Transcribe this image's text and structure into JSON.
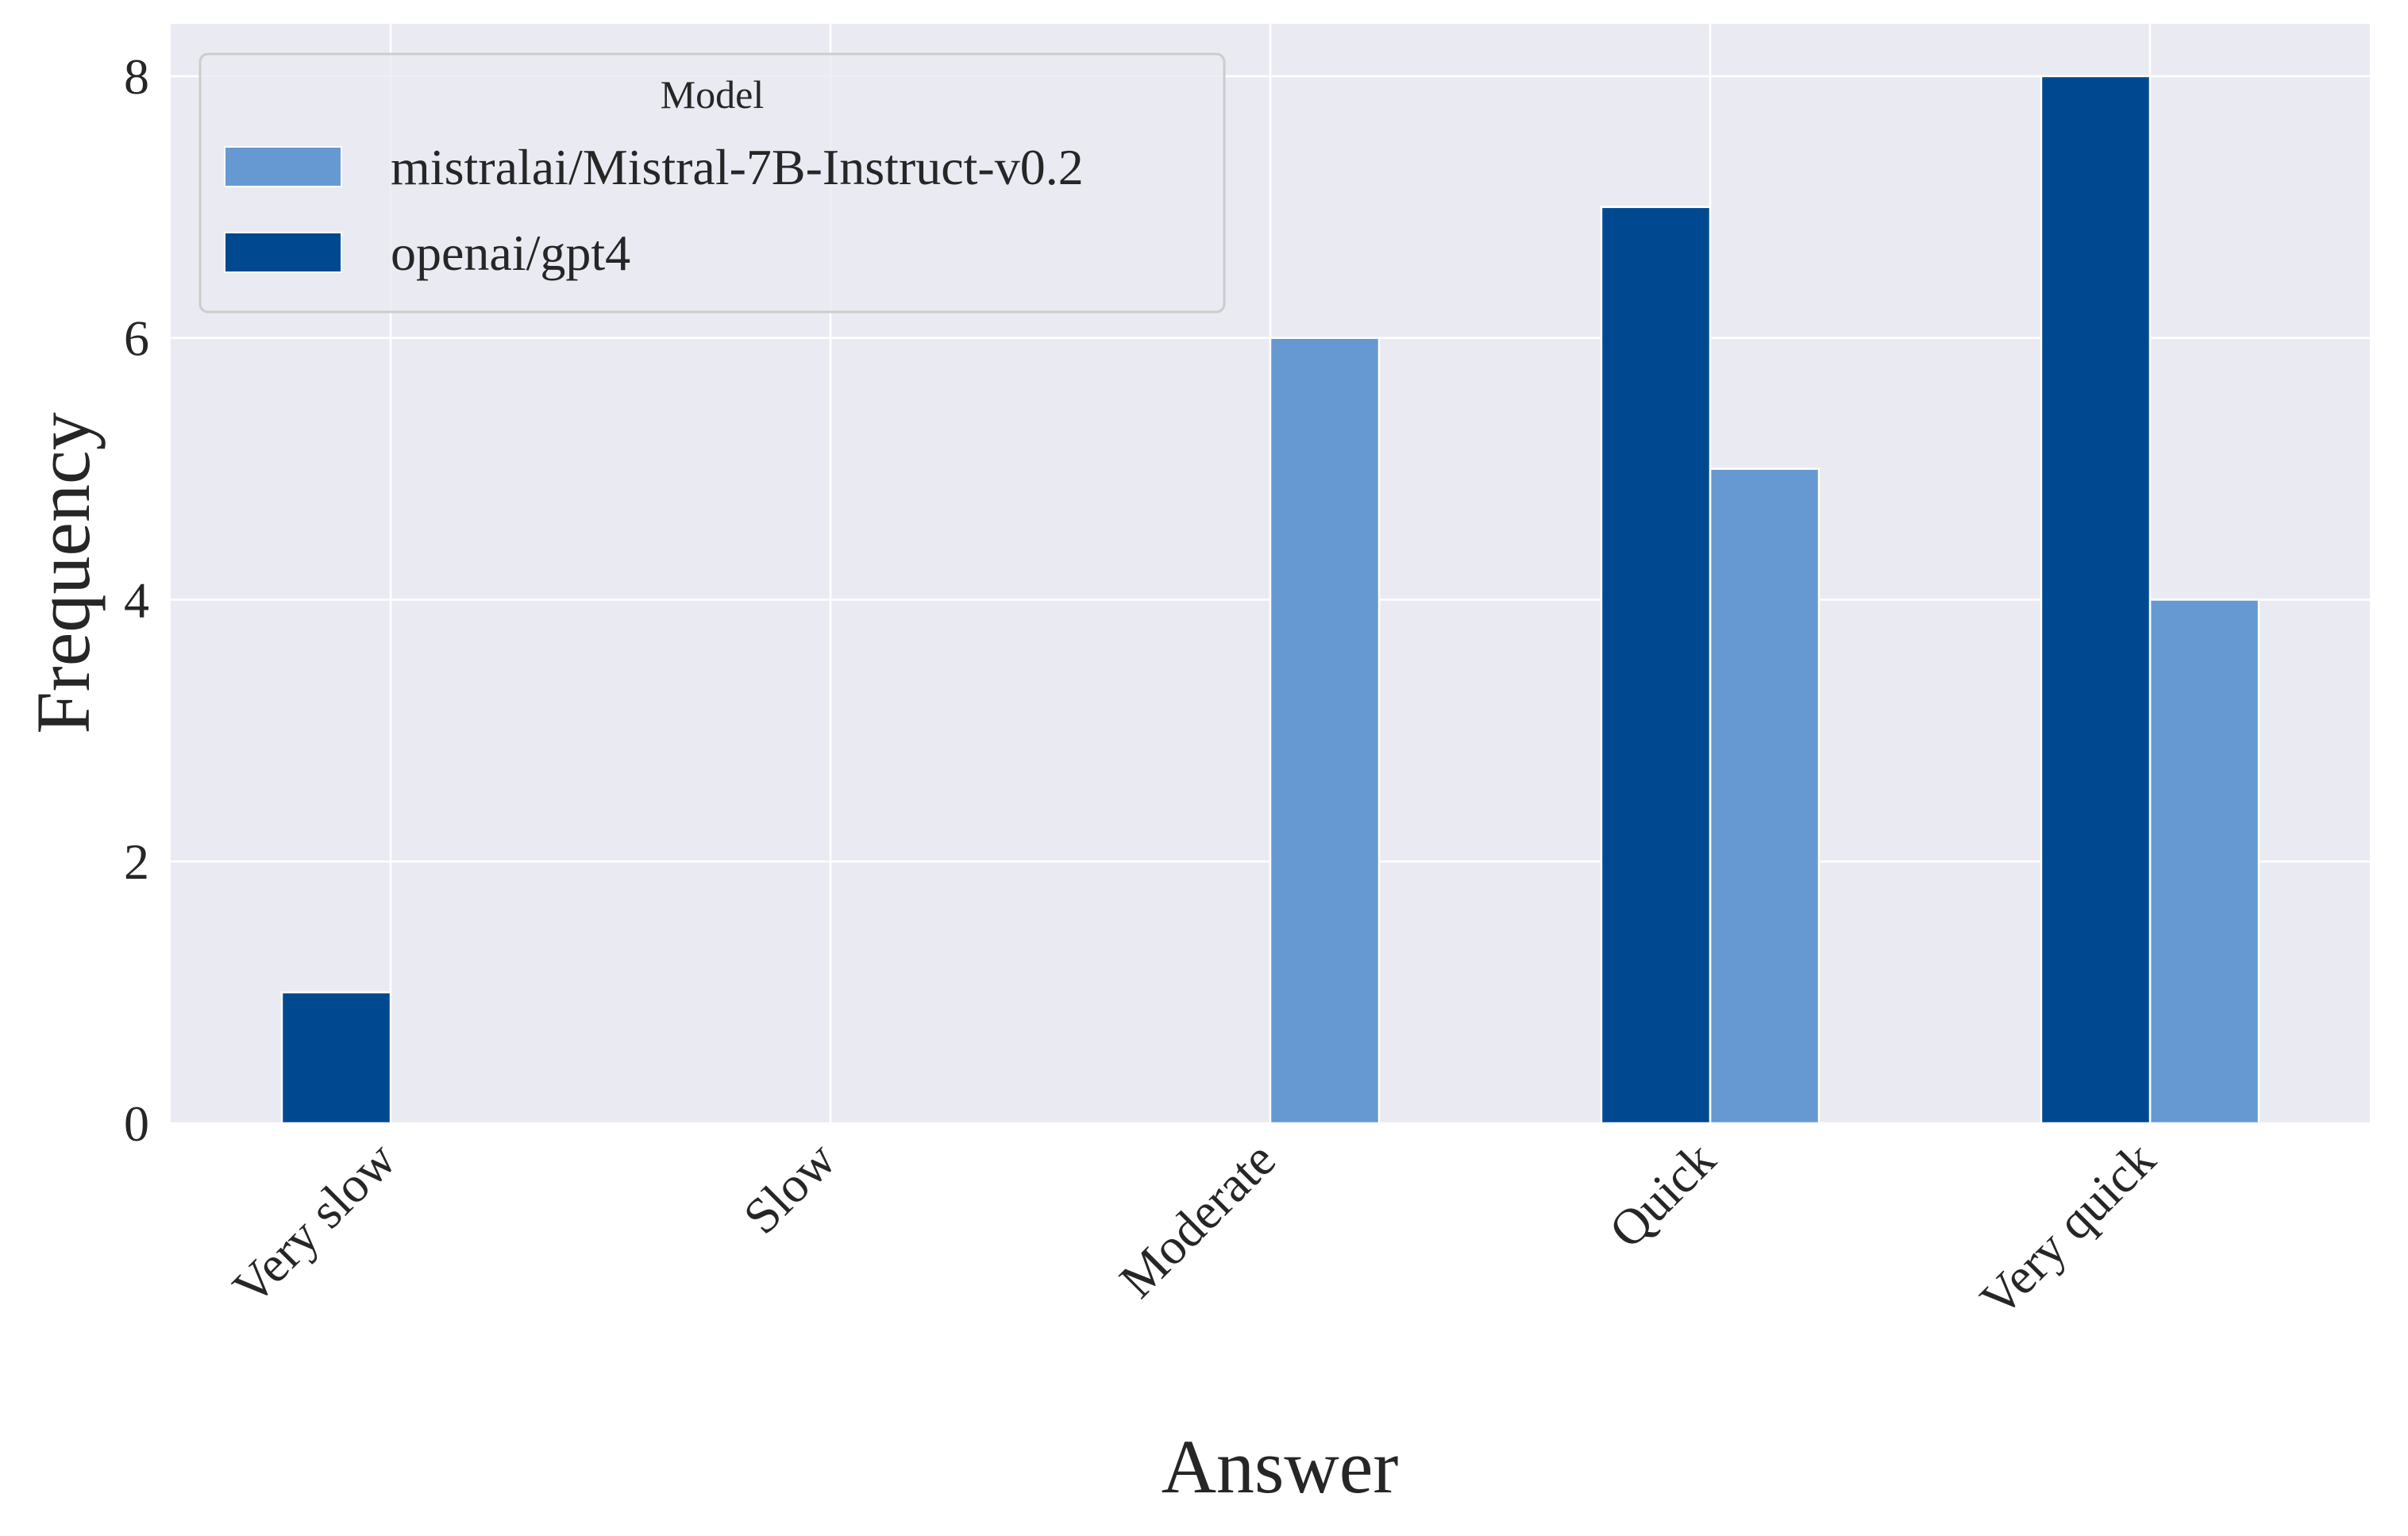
{
  "chart_data": {
    "type": "bar",
    "title": "",
    "xlabel": "Answer",
    "ylabel": "Frequency",
    "categories": [
      "Very slow",
      "Slow",
      "Moderate",
      "Quick",
      "Very quick"
    ],
    "ylim": [
      0,
      8.4
    ],
    "yticks": [
      0,
      2,
      4,
      6,
      8
    ],
    "grid": true,
    "legend": {
      "title": "Model",
      "placement": "top-left"
    },
    "series": [
      {
        "name": "mistralai/Mistral-7B-Instruct-v0.2",
        "color": "#6699d2",
        "values": [
          0,
          0,
          6,
          5,
          4
        ]
      },
      {
        "name": "openai/gpt4",
        "color": "#004990",
        "values": [
          1,
          0,
          0,
          7,
          8
        ]
      }
    ],
    "style": {
      "plot_background": "#eaeaf2",
      "grid_color": "#ffffff",
      "text_color": "#262626"
    }
  }
}
